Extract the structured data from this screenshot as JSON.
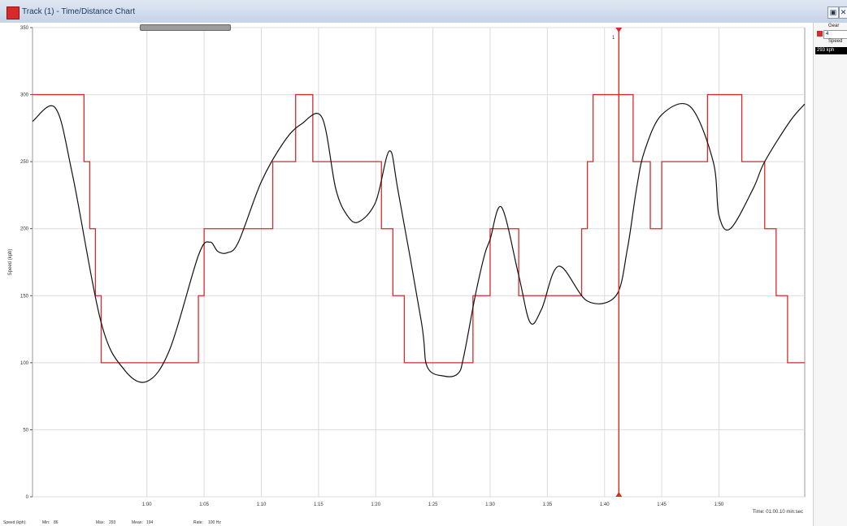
{
  "window": {
    "title": "Track (1) - Time/Distance Chart",
    "btn_max": "▣",
    "btn_close": "✕"
  },
  "legend": {
    "gear_title": "Gear",
    "gear_value": "4",
    "speed_title": "Speed",
    "speed_value": "293 kph",
    "gear_color": "#d62b2b",
    "speed_color": "#111111"
  },
  "footer": {
    "speed_label": "Speed (kph):",
    "min": "Min:",
    "min_value": "86",
    "max": "Max:",
    "max_value": "293",
    "mean": "Mean:",
    "mean_value": "194",
    "rate": "Rate:",
    "rate_value": "100 Hz"
  },
  "cursor": {
    "label": "1",
    "time": 1.4125
  },
  "chart_data": {
    "type": "line",
    "xlabel": "Time: 01:00.10 min:sec",
    "ylabel": "Speed (kph)",
    "xlim": [
      0.9,
      1.575
    ],
    "ylim": [
      0,
      350
    ],
    "grid": true,
    "x_ticks": [
      1.0,
      1.05,
      1.1,
      1.15,
      1.2,
      1.25,
      1.3,
      1.35,
      1.4,
      1.45,
      1.5
    ],
    "x_tick_labels": [
      "1:00",
      "1:05",
      "1:10",
      "1:15",
      "1:20",
      "1:25",
      "1:30",
      "1:35",
      "1:40",
      "1:45",
      "1:50"
    ],
    "y_ticks": [
      0,
      50,
      100,
      150,
      200,
      250,
      300,
      350
    ],
    "y_tick_labels": [
      "0",
      "50",
      "100",
      "150",
      "200",
      "250",
      "300",
      "350"
    ],
    "series": [
      {
        "name": "Speed",
        "color": "#111111",
        "x": [
          0.9,
          0.92,
          0.935,
          0.96,
          0.98,
          1.0,
          1.02,
          1.045,
          1.055,
          1.062,
          1.07,
          1.08,
          1.1,
          1.12,
          1.135,
          1.153,
          1.165,
          1.175,
          1.185,
          1.2,
          1.212,
          1.22,
          1.24,
          1.245,
          1.26,
          1.272,
          1.277,
          1.287,
          1.295,
          1.3,
          1.31,
          1.325,
          1.335,
          1.345,
          1.36,
          1.385,
          1.41,
          1.42,
          1.428,
          1.435,
          1.45,
          1.475,
          1.495,
          1.5,
          1.51,
          1.53,
          1.54,
          1.562,
          1.575
        ],
        "y": [
          280,
          290,
          240,
          130,
          95,
          86,
          110,
          180,
          190,
          183,
          182,
          190,
          235,
          265,
          278,
          283,
          230,
          210,
          205,
          220,
          258,
          226,
          130,
          97,
          90,
          92,
          105,
          150,
          180,
          192,
          216,
          165,
          130,
          140,
          172,
          146,
          150,
          185,
          230,
          258,
          285,
          291,
          250,
          210,
          200,
          230,
          250,
          280,
          293
        ]
      },
      {
        "name": "Gear",
        "color": "#d62b2b",
        "x": [
          0.9,
          0.925,
          0.935,
          0.94,
          0.945,
          0.95,
          0.955,
          0.958,
          0.96,
          0.995,
          1.0,
          1.005,
          1.01,
          1.015,
          1.02,
          1.025,
          1.03,
          1.035,
          1.04,
          1.045,
          1.05,
          1.055,
          1.06,
          1.075,
          1.08,
          1.09,
          1.1,
          1.11,
          1.12,
          1.13,
          1.14,
          1.145,
          1.15,
          1.165,
          1.18,
          1.19,
          1.195,
          1.2,
          1.205,
          1.215,
          1.225,
          1.27,
          1.28,
          1.285,
          1.3,
          1.325,
          1.33,
          1.345,
          1.365,
          1.38,
          1.385,
          1.39,
          1.415,
          1.425,
          1.44,
          1.445,
          1.45,
          1.465,
          1.49,
          1.51,
          1.52,
          1.54,
          1.55,
          1.56,
          1.575
        ],
        "y": [
          300,
          300,
          300,
          300,
          250,
          200,
          150,
          150,
          100,
          100,
          100,
          100,
          100,
          100,
          100,
          100,
          100,
          100,
          100,
          150,
          200,
          200,
          200,
          200,
          200,
          200,
          200,
          250,
          250,
          300,
          300,
          250,
          250,
          250,
          250,
          250,
          250,
          250,
          200,
          150,
          100,
          100,
          100,
          150,
          200,
          150,
          150,
          150,
          150,
          200,
          250,
          300,
          300,
          250,
          200,
          200,
          250,
          250,
          300,
          300,
          250,
          200,
          150,
          100,
          100
        ]
      }
    ]
  }
}
